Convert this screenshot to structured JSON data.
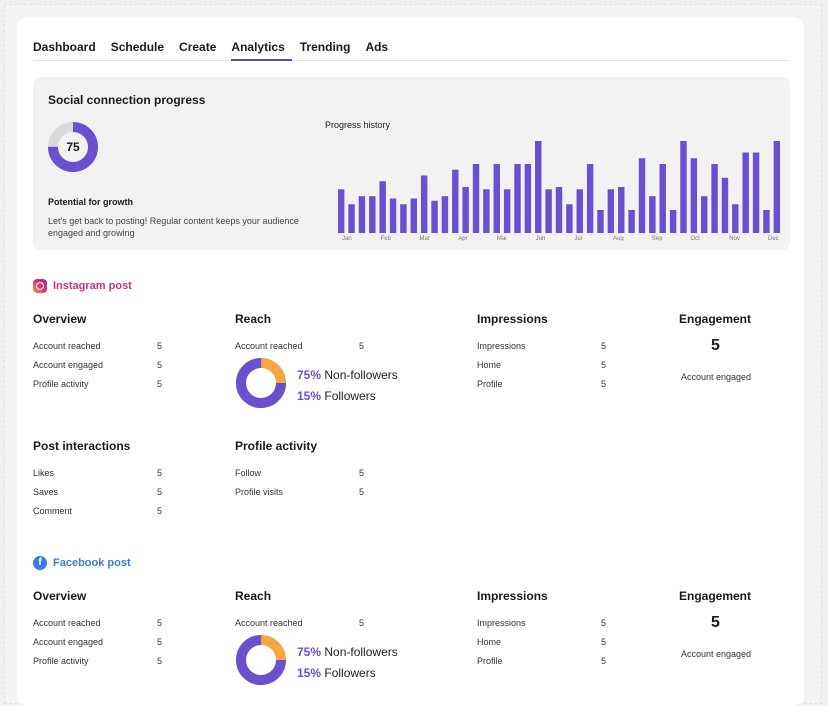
{
  "tabs": [
    "Dashboard",
    "Schedule",
    "Create",
    "Analytics",
    "Trending",
    "Ads"
  ],
  "active_tab": "Analytics",
  "progress": {
    "title": "Social connection progress",
    "score": "75",
    "score_fraction": 0.75,
    "growth_title": "Potential for growth",
    "growth_desc": "Let's get back to posting! Regular content keeps your audience engaged and growing",
    "history_title": "Progress history"
  },
  "chart_data": {
    "type": "bar",
    "title": "Progress history",
    "x_tick_labels": [
      "Jan",
      "Feb",
      "Mar",
      "Apr",
      "Mai",
      "Jun",
      "Jul",
      "Aug",
      "Sep",
      "Oct",
      "Nov",
      "Dec"
    ],
    "values": [
      38,
      25,
      32,
      32,
      45,
      30,
      25,
      30,
      50,
      28,
      32,
      55,
      40,
      60,
      38,
      60,
      38,
      60,
      60,
      80,
      38,
      40,
      25,
      38,
      60,
      20,
      38,
      40,
      20,
      65,
      32,
      60,
      20,
      80,
      65,
      32,
      60,
      48,
      25,
      70,
      70,
      20,
      80
    ],
    "ylim": [
      0,
      80
    ],
    "color": "#6a4fcf"
  },
  "instagram": {
    "title": "Instagram post",
    "overview": {
      "title": "Overview",
      "rows": [
        {
          "label": "Account reached",
          "value": "5"
        },
        {
          "label": "Account engaged",
          "value": "5"
        },
        {
          "label": "Profile activity",
          "value": "5"
        }
      ]
    },
    "reach": {
      "title": "Reach",
      "rows": [
        {
          "label": "Account reached",
          "value": "5"
        }
      ],
      "non_followers": "75%",
      "non_followers_label": "Non-followers",
      "followers": "15%",
      "followers_label": "Followers"
    },
    "impressions": {
      "title": "Impressions",
      "rows": [
        {
          "label": "Impressions",
          "value": "5"
        },
        {
          "label": "Home",
          "value": "5"
        },
        {
          "label": "Profile",
          "value": "5"
        }
      ]
    },
    "engagement": {
      "title": "Engagement",
      "value": "5",
      "label": "Account engaged"
    },
    "post_interactions": {
      "title": "Post interactions",
      "rows": [
        {
          "label": "Likes",
          "value": "5"
        },
        {
          "label": "Saves",
          "value": "5"
        },
        {
          "label": "Comment",
          "value": "5"
        }
      ]
    },
    "profile_activity": {
      "title": "Profile activity",
      "rows": [
        {
          "label": "Follow",
          "value": "5"
        },
        {
          "label": "Profile visits",
          "value": "5"
        }
      ]
    }
  },
  "facebook": {
    "title": "Facebook post",
    "overview": {
      "title": "Overview",
      "rows": [
        {
          "label": "Account reached",
          "value": "5"
        },
        {
          "label": "Account engaged",
          "value": "5"
        },
        {
          "label": "Profile activity",
          "value": "5"
        }
      ]
    },
    "reach": {
      "title": "Reach",
      "rows": [
        {
          "label": "Account reached",
          "value": "5"
        }
      ],
      "non_followers": "75%",
      "non_followers_label": "Non-followers",
      "followers": "15%",
      "followers_label": "Followers"
    },
    "impressions": {
      "title": "Impressions",
      "rows": [
        {
          "label": "Impressions",
          "value": "5"
        },
        {
          "label": "Home",
          "value": "5"
        },
        {
          "label": "Profile",
          "value": "5"
        }
      ]
    },
    "engagement": {
      "title": "Engagement",
      "value": "5",
      "label": "Account engaged"
    }
  },
  "colors": {
    "accent": "#6a4fcf",
    "donut_secondary": "#f4a640",
    "instagram": "#c13584",
    "facebook": "#3b7dd8"
  }
}
